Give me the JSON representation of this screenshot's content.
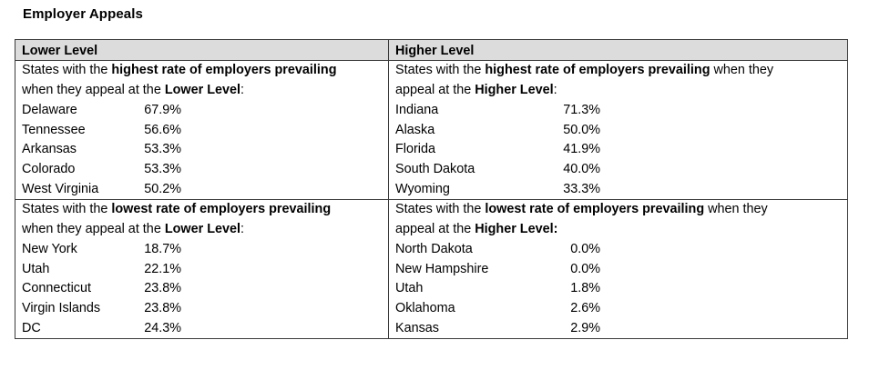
{
  "title": "Employer Appeals",
  "lower": {
    "header": "Lower Level",
    "highest_desc": {
      "pre": "States with the ",
      "bold1": "highest rate of employers prevailing",
      "mid": "when they appeal at the ",
      "bold2": "Lower Level",
      "post": ":"
    },
    "highest_rows": [
      {
        "state": "Delaware",
        "pct": "67.9%"
      },
      {
        "state": "Tennessee",
        "pct": "56.6%"
      },
      {
        "state": "Arkansas",
        "pct": "53.3%"
      },
      {
        "state": "Colorado",
        "pct": "53.3%"
      },
      {
        "state": "West Virginia",
        "pct": "50.2%"
      }
    ],
    "lowest_desc": {
      "pre": "States with the ",
      "bold1": "lowest rate of employers prevailing",
      "mid": "when they appeal at the ",
      "bold2": "Lower Level",
      "post": ":"
    },
    "lowest_rows": [
      {
        "state": "New York",
        "pct": "18.7%"
      },
      {
        "state": "Utah",
        "pct": "22.1%"
      },
      {
        "state": "Connecticut",
        "pct": "23.8%"
      },
      {
        "state": "Virgin Islands",
        "pct": "23.8%"
      },
      {
        "state": "DC",
        "pct": "24.3%"
      }
    ]
  },
  "higher": {
    "header": "Higher Level",
    "highest_desc": {
      "pre": "States with the ",
      "bold1": "highest rate of employers prevailing",
      "mid": " when they",
      "line2": "appeal at the ",
      "bold2": "Higher Level",
      "post": ":"
    },
    "highest_rows": [
      {
        "state": "Indiana",
        "pct": "71.3%"
      },
      {
        "state": "Alaska",
        "pct": "50.0%"
      },
      {
        "state": "Florida",
        "pct": "41.9%"
      },
      {
        "state": "South Dakota",
        "pct": "40.0%"
      },
      {
        "state": "Wyoming",
        "pct": "33.3%"
      }
    ],
    "lowest_desc": {
      "pre": "States with the ",
      "bold1": "lowest rate of employers prevailing",
      "mid": " when they",
      "line2": "appeal at the ",
      "bold2": "Higher Level:",
      "post": ""
    },
    "lowest_rows": [
      {
        "state": "North Dakota",
        "pct": "0.0%"
      },
      {
        "state": "New Hampshire",
        "pct": "0.0%"
      },
      {
        "state": "Utah",
        "pct": "1.8%"
      },
      {
        "state": "Oklahoma",
        "pct": "2.6%"
      },
      {
        "state": "Kansas",
        "pct": "2.9%"
      }
    ]
  }
}
